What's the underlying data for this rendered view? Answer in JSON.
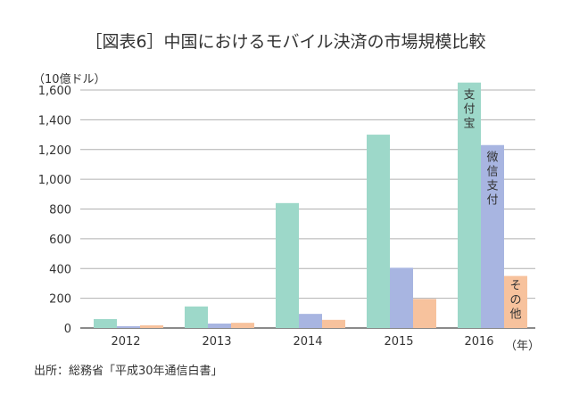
{
  "title": "［図表6］中国におけるモバイル決済の市場規模比較",
  "unit_label": "（10億ドル）",
  "x_unit": "（年）",
  "source": "出所：総務省「平成30年通信白書」",
  "chart_data": {
    "type": "bar",
    "categories": [
      "2012",
      "2013",
      "2014",
      "2015",
      "2016"
    ],
    "series": [
      {
        "name": "支付宝",
        "color": "#9dd8c9",
        "values": [
          60,
          145,
          840,
          1300,
          1650
        ]
      },
      {
        "name": "微信支付",
        "color": "#a8b5e1",
        "values": [
          12,
          30,
          95,
          405,
          1230
        ]
      },
      {
        "name": "その他",
        "color": "#f7c29d",
        "values": [
          18,
          35,
          55,
          195,
          350
        ]
      }
    ],
    "y_ticks": [
      "0",
      "200",
      "400",
      "600",
      "800",
      "1,000",
      "1,200",
      "1,400",
      "1,600"
    ],
    "ylim": [
      0,
      1600
    ],
    "grid": true,
    "legend": "labels on 2016 bars"
  }
}
